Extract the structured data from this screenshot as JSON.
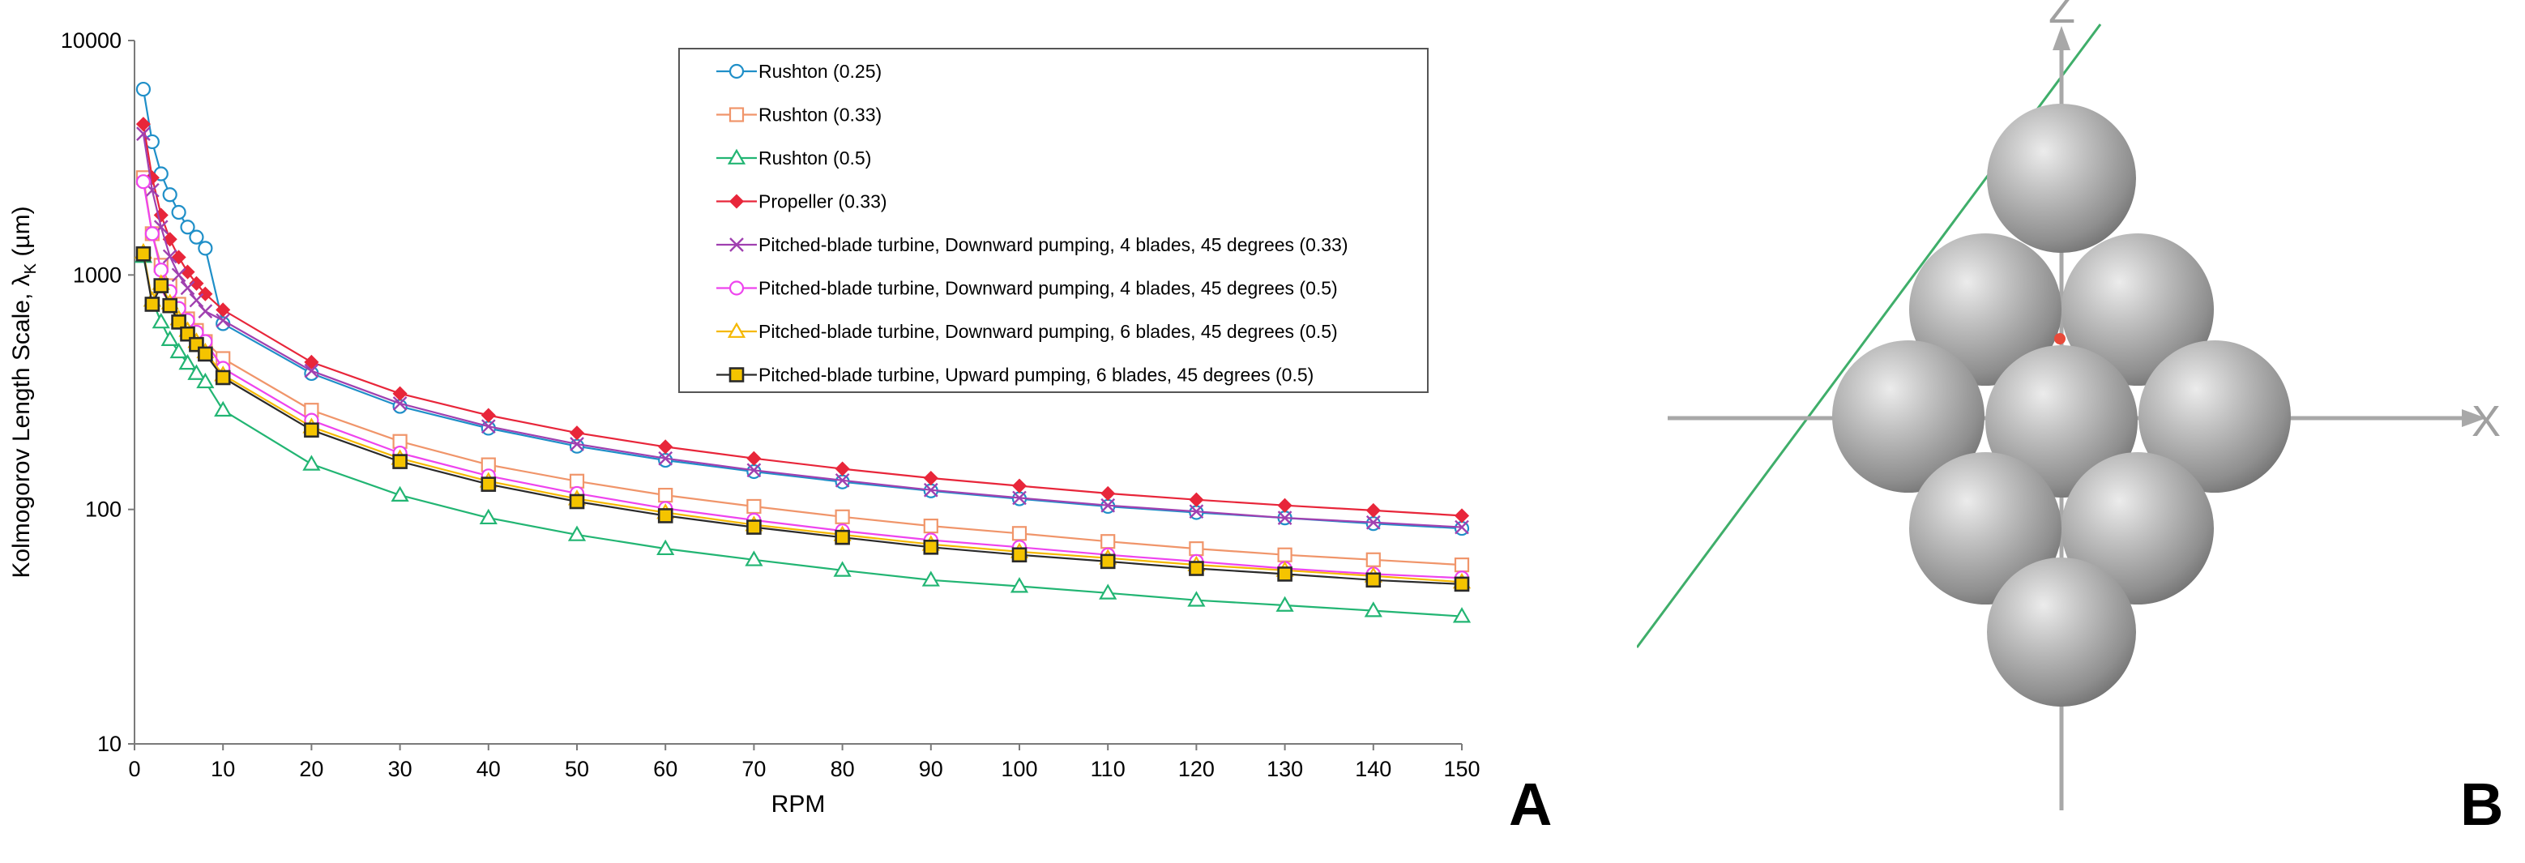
{
  "chart_data": {
    "type": "line",
    "panel_label": "A",
    "xlabel": "RPM",
    "ylabel": "Kolmogorov Length Scale, λ",
    "ylabel_subscript": "K",
    "ylabel_unit": " (µm)",
    "yscale": "log",
    "xlim": [
      0,
      150
    ],
    "ylim": [
      10,
      10000
    ],
    "x_ticks": [
      "0",
      "10",
      "20",
      "30",
      "40",
      "50",
      "60",
      "70",
      "80",
      "90",
      "100",
      "110",
      "120",
      "130",
      "140",
      "150"
    ],
    "y_ticks": [
      "10",
      "100",
      "1000",
      "10000"
    ],
    "grid": false,
    "legend_position": "top-right",
    "x": [
      1,
      2,
      3,
      4,
      5,
      6,
      7,
      8,
      10,
      20,
      30,
      40,
      50,
      60,
      70,
      80,
      90,
      100,
      110,
      120,
      130,
      140,
      150
    ],
    "series": [
      {
        "name": "Rushton (0.25)",
        "color": "#1f8fc8",
        "marker": "circle",
        "values": [
          6200,
          3700,
          2700,
          2200,
          1850,
          1600,
          1450,
          1300,
          620,
          380,
          275,
          222,
          186,
          162,
          145,
          131,
          120,
          111,
          103,
          97,
          92,
          87,
          83
        ]
      },
      {
        "name": "Rushton (0.33)",
        "color": "#f0956a",
        "marker": "square",
        "values": [
          2600,
          1500,
          1100,
          900,
          750,
          650,
          580,
          520,
          440,
          265,
          195,
          155,
          132,
          115,
          103,
          93,
          85,
          79,
          73,
          68,
          64,
          61,
          58
        ]
      },
      {
        "name": "Rushton (0.5)",
        "color": "#22b573",
        "marker": "triangle",
        "values": [
          1200,
          780,
          630,
          530,
          470,
          420,
          380,
          350,
          265,
          156,
          115,
          92,
          78,
          68,
          61,
          55,
          50,
          47,
          44,
          41,
          39,
          37,
          35
        ]
      },
      {
        "name": "Propeller (0.33)",
        "color": "#e8263a",
        "marker": "diamond",
        "values": [
          4400,
          2600,
          1800,
          1420,
          1190,
          1030,
          920,
          830,
          710,
          425,
          312,
          252,
          212,
          185,
          165,
          149,
          136,
          126,
          117,
          110,
          104,
          99,
          94
        ]
      },
      {
        "name": "Pitched-blade turbine, Downward pumping, 4 blades, 45 degrees (0.33)",
        "color": "#a040b0",
        "marker": "x",
        "values": [
          4000,
          2300,
          1600,
          1200,
          1000,
          880,
          780,
          700,
          640,
          390,
          283,
          226,
          190,
          165,
          147,
          133,
          121,
          112,
          104,
          98,
          92,
          88,
          84
        ]
      },
      {
        "name": "Pitched-blade turbine, Downward pumping, 4 blades, 45 degrees (0.5)",
        "color": "#ee44ee",
        "marker": "circle",
        "values": [
          2500,
          1500,
          1050,
          850,
          720,
          640,
          570,
          520,
          400,
          240,
          174,
          139,
          117,
          101,
          90,
          81,
          74,
          69,
          64,
          60,
          56,
          53,
          51
        ]
      },
      {
        "name": "Pitched-blade turbine, Downward pumping, 6 blades, 45 degrees (0.5)",
        "color": "#f5b800",
        "marker": "triangle",
        "values": [
          1250,
          780,
          920,
          760,
          650,
          580,
          520,
          470,
          375,
          225,
          165,
          132,
          111,
          97,
          86,
          78,
          71,
          66,
          62,
          58,
          55,
          52,
          49
        ]
      },
      {
        "name": "Pitched-blade turbine, Upward pumping, 6 blades, 45 degrees (0.5)",
        "color": "#2a2a2a",
        "marker": "square",
        "values": [
          1230,
          750,
          900,
          740,
          630,
          560,
          505,
          460,
          365,
          218,
          160,
          128,
          108,
          94,
          84,
          76,
          69,
          64,
          60,
          56,
          53,
          50,
          48
        ]
      }
    ]
  },
  "diagram": {
    "panel_label": "B",
    "axis_z_label": "Z",
    "axis_x_label": "X"
  }
}
